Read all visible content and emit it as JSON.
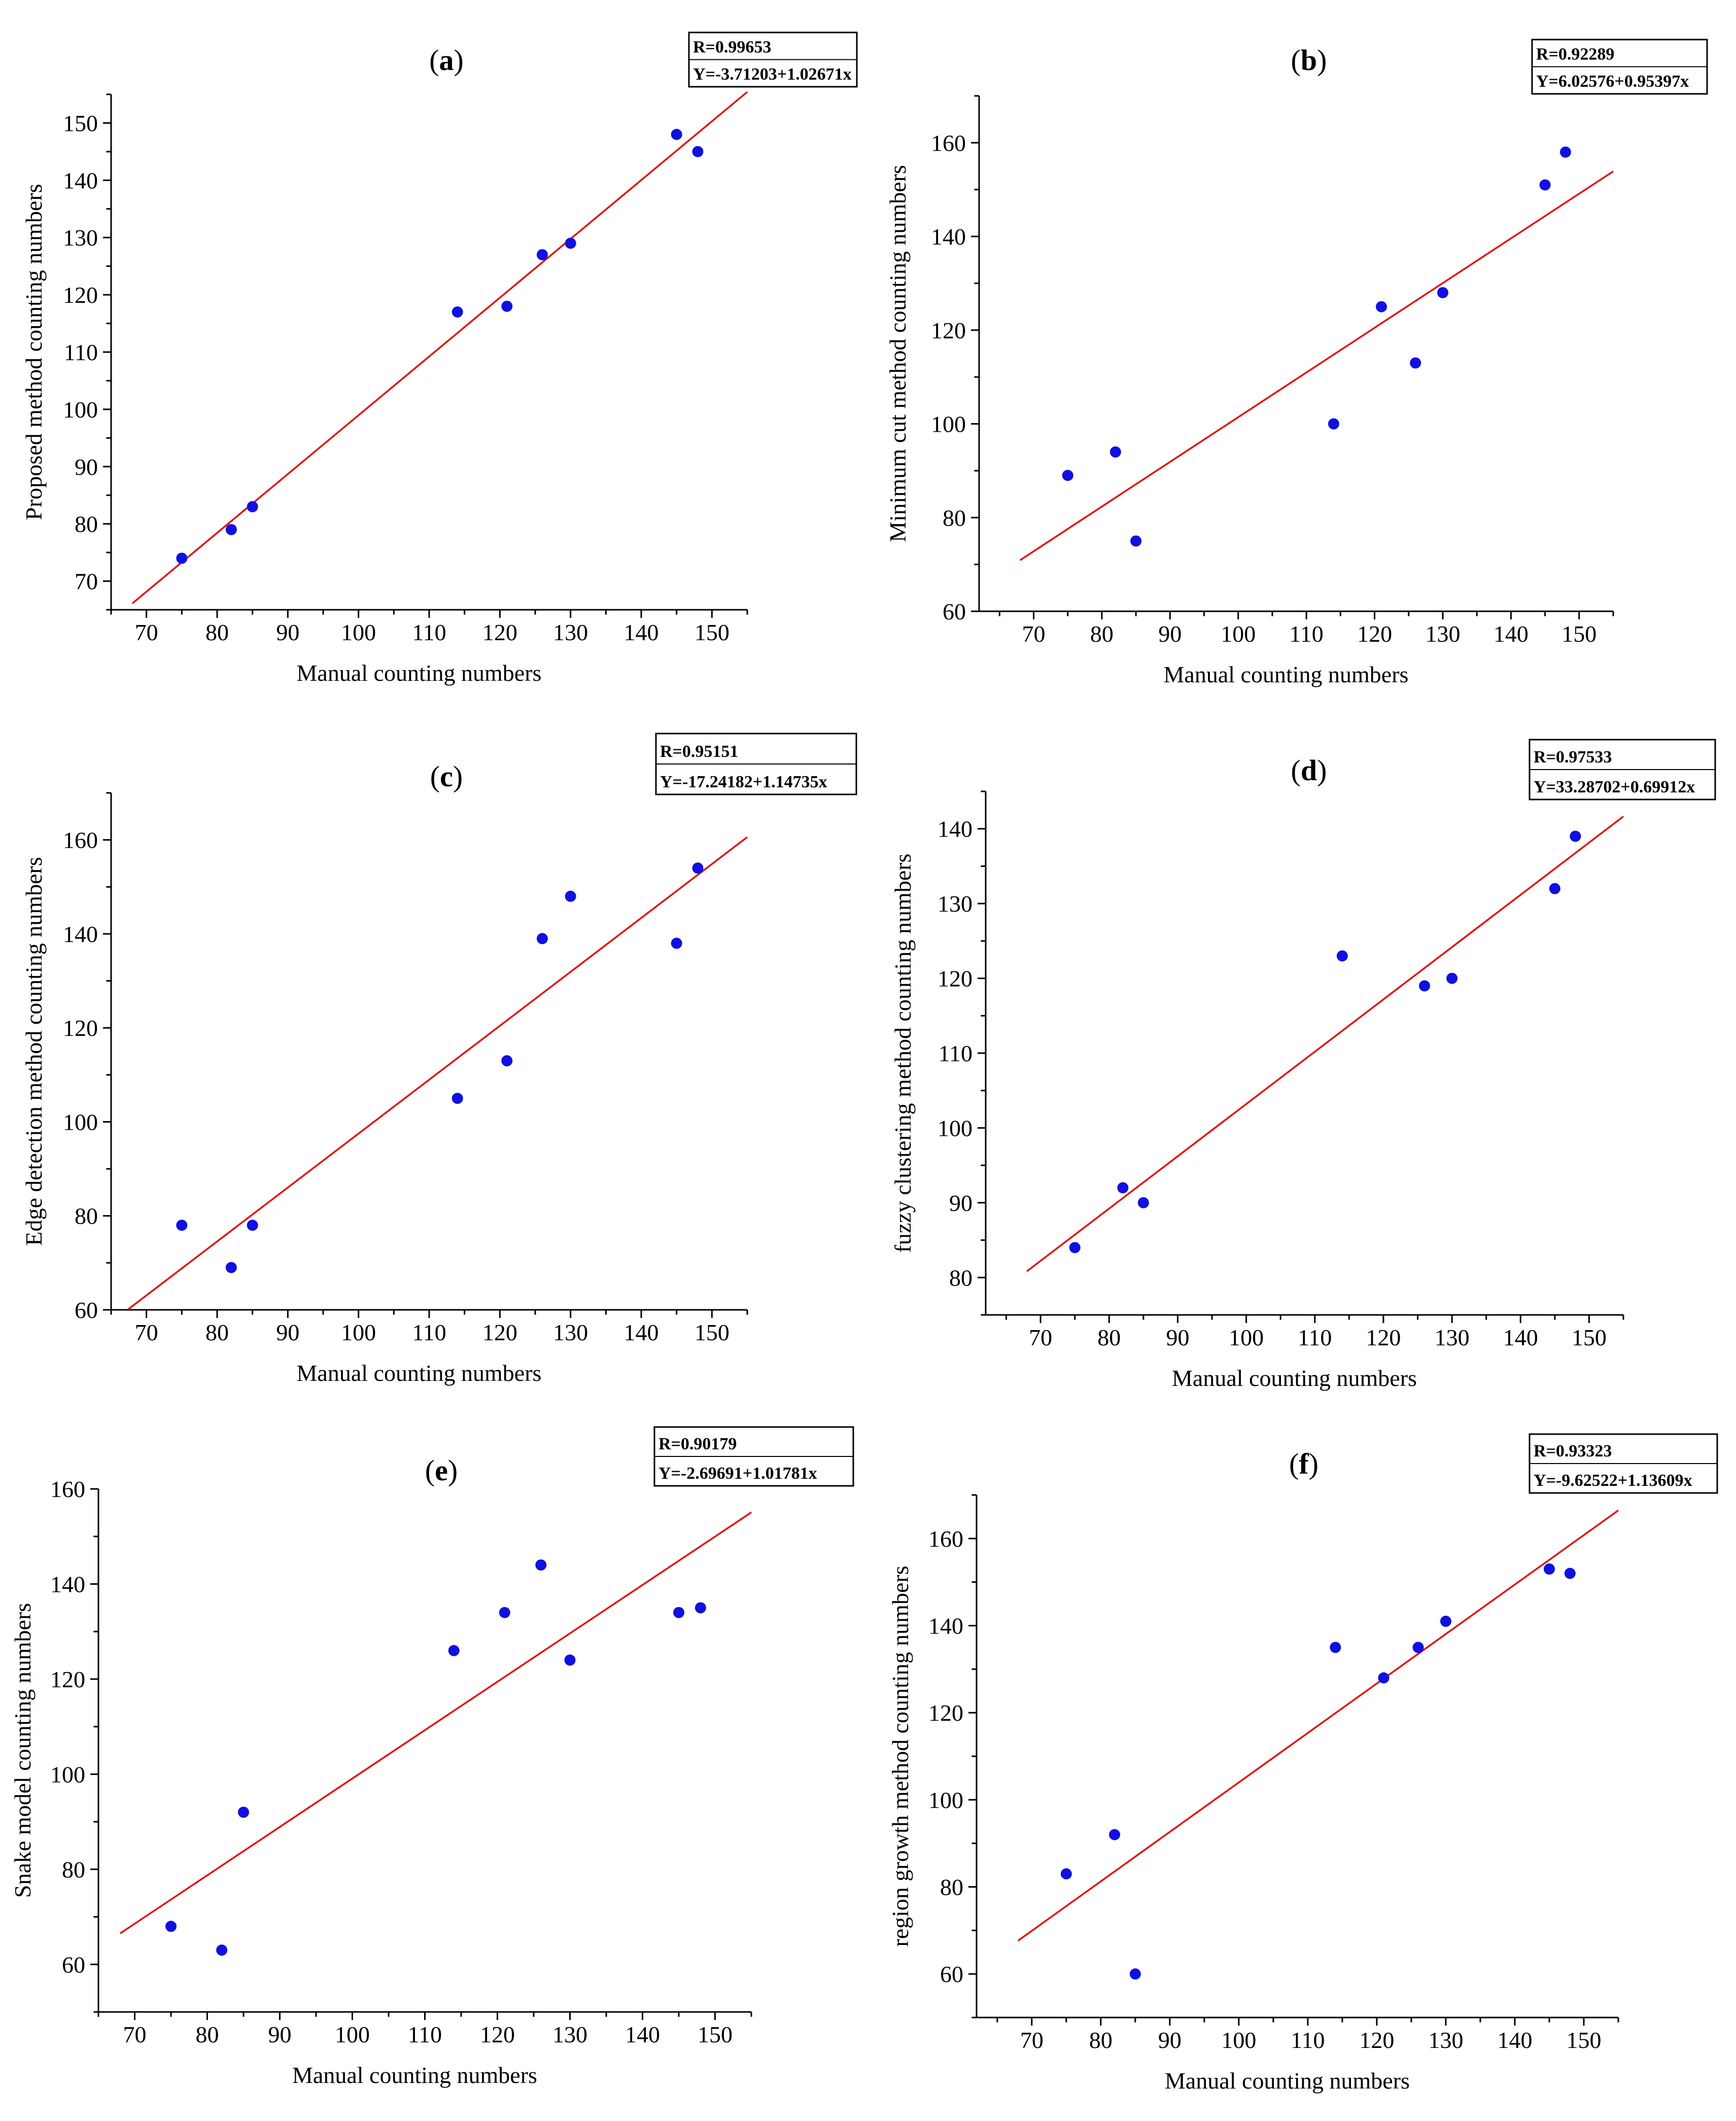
{
  "figure_title": "",
  "colors": {
    "points": "#1010e0",
    "fit_line": "#e01010",
    "axes": "#000000",
    "background": "#ffffff"
  },
  "chart_data": [
    {
      "id": "a",
      "type": "scatter",
      "panel_label": "a",
      "panel_label_open": "(",
      "panel_label_close": ")",
      "xlabel": "Manual counting numbers",
      "ylabel": "Proposed method counting numbers",
      "xlim": [
        65,
        155
      ],
      "ylim": [
        65,
        155
      ],
      "xticks": [
        70,
        80,
        90,
        100,
        110,
        120,
        130,
        140,
        150
      ],
      "yticks": [
        70,
        80,
        90,
        100,
        110,
        120,
        130,
        140,
        150
      ],
      "x": [
        75,
        82,
        85,
        114,
        121,
        126,
        130,
        145,
        148
      ],
      "y": [
        74,
        79,
        83,
        117,
        118,
        127,
        129,
        148,
        145
      ],
      "fit": {
        "intercept": -3.71203,
        "slope": 1.02671,
        "x_range": [
          68,
          155
        ]
      },
      "stats": {
        "r_text": "R=0.99653",
        "equation_text": "Y=-3.71203+1.02671x"
      }
    },
    {
      "id": "b",
      "type": "scatter",
      "panel_label": "b",
      "panel_label_open": "(",
      "panel_label_close": ")",
      "xlabel": "Manual counting numbers",
      "ylabel": "Minimum cut method counting numbers",
      "xlim": [
        62,
        155
      ],
      "ylim": [
        60,
        170
      ],
      "xticks": [
        70,
        80,
        90,
        100,
        110,
        120,
        130,
        140,
        150
      ],
      "yticks": [
        60,
        80,
        100,
        120,
        140,
        160
      ],
      "x": [
        75,
        82,
        85,
        114,
        121,
        126,
        130,
        145,
        148
      ],
      "y": [
        89,
        94,
        75,
        100,
        125,
        113,
        128,
        151,
        158
      ],
      "fit": {
        "intercept": 6.02576,
        "slope": 0.95397,
        "x_range": [
          68,
          155
        ]
      },
      "stats": {
        "r_text": "R=0.92289",
        "equation_text": "Y=6.02576+0.95397x"
      }
    },
    {
      "id": "c",
      "type": "scatter",
      "panel_label": "c",
      "panel_label_open": "(",
      "panel_label_close": ")",
      "xlabel": "Manual counting numbers",
      "ylabel": "Edge detection method counting numbers",
      "xlim": [
        65,
        155
      ],
      "ylim": [
        60,
        170
      ],
      "xticks": [
        70,
        80,
        90,
        100,
        110,
        120,
        130,
        140,
        150
      ],
      "yticks": [
        60,
        80,
        100,
        120,
        140,
        160
      ],
      "x": [
        75,
        82,
        85,
        114,
        121,
        126,
        130,
        145,
        148
      ],
      "y": [
        78,
        69,
        78,
        105,
        113,
        139,
        148,
        138,
        154
      ],
      "fit": {
        "intercept": -17.24182,
        "slope": 1.14735,
        "x_range": [
          67.4,
          155
        ]
      },
      "stats": {
        "r_text": "R=0.95151",
        "equation_text": "Y=-17.24182+1.14735x"
      }
    },
    {
      "id": "d",
      "type": "scatter",
      "panel_label": "d",
      "panel_label_open": "(",
      "panel_label_close": ")",
      "xlabel": "Manual counting numbers",
      "ylabel": "fuzzy clustering method counting numbers",
      "xlim": [
        62,
        155
      ],
      "ylim": [
        75,
        145
      ],
      "xticks": [
        70,
        80,
        90,
        100,
        110,
        120,
        130,
        140,
        150
      ],
      "yticks": [
        80,
        90,
        100,
        110,
        120,
        130,
        140
      ],
      "x": [
        75,
        82,
        85,
        114,
        126,
        130,
        145,
        148
      ],
      "y": [
        84,
        92,
        90,
        123,
        119,
        120,
        132,
        139
      ],
      "fit": {
        "intercept": 33.28702,
        "slope": 0.69912,
        "x_range": [
          68,
          155
        ]
      },
      "stats": {
        "r_text": "R=0.97533",
        "equation_text": "Y=33.28702+0.69912x"
      }
    },
    {
      "id": "e",
      "type": "scatter",
      "panel_label": "e",
      "panel_label_open": "(",
      "panel_label_close": ")",
      "xlabel": "Manual counting numbers",
      "ylabel": "Snake model counting numbers",
      "xlim": [
        65,
        155
      ],
      "ylim": [
        50,
        160
      ],
      "xticks": [
        70,
        80,
        90,
        100,
        110,
        120,
        130,
        140,
        150
      ],
      "yticks": [
        60,
        80,
        100,
        120,
        140,
        160
      ],
      "x": [
        75,
        82,
        85,
        114,
        121,
        126,
        130,
        145,
        148
      ],
      "y": [
        68,
        63,
        92,
        126,
        134,
        144,
        124,
        134,
        135
      ],
      "fit": {
        "intercept": -2.69691,
        "slope": 1.01781,
        "x_range": [
          68,
          155
        ]
      },
      "stats": {
        "r_text": "R=0.90179",
        "equation_text": "Y=-2.69691+1.01781x"
      }
    },
    {
      "id": "f",
      "type": "scatter",
      "panel_label": "f",
      "panel_label_open": "(",
      "panel_label_close": ")",
      "xlabel": "Manual counting numbers",
      "ylabel": "region growth method counting numbers",
      "xlim": [
        62,
        155
      ],
      "ylim": [
        50,
        170
      ],
      "xticks": [
        70,
        80,
        90,
        100,
        110,
        120,
        130,
        140,
        150
      ],
      "yticks": [
        60,
        80,
        100,
        120,
        140,
        160
      ],
      "x": [
        75,
        82,
        85,
        114,
        121,
        126,
        130,
        145,
        148
      ],
      "y": [
        83,
        92,
        60,
        135,
        128,
        135,
        141,
        153,
        152
      ],
      "fit": {
        "intercept": -9.62522,
        "slope": 1.13609,
        "x_range": [
          68,
          155
        ]
      },
      "stats": {
        "r_text": "R=0.93323",
        "equation_text": "Y=-9.62522+1.13609x"
      }
    }
  ]
}
